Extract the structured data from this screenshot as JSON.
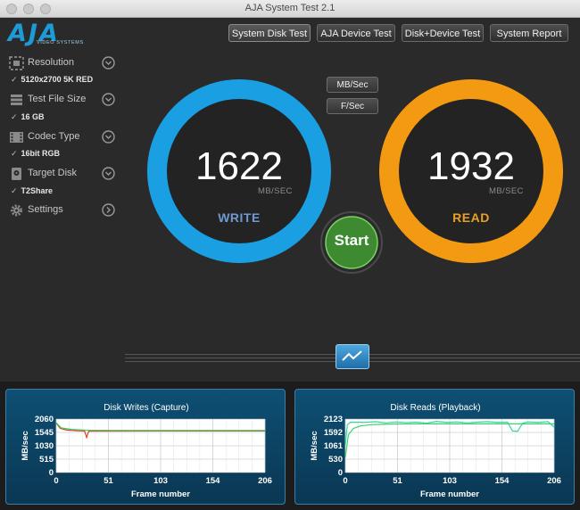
{
  "window": {
    "title": "AJA System Test 2.1"
  },
  "logo": {
    "text": "AJA",
    "subtitle": "VIDEO SYSTEMS"
  },
  "tabs": [
    {
      "label": "System Disk Test",
      "active": true
    },
    {
      "label": "AJA Device Test",
      "active": false
    },
    {
      "label": "Disk+Device Test",
      "active": false
    },
    {
      "label": "System Report",
      "active": false
    }
  ],
  "sidebar": {
    "items": [
      {
        "label": "Resolution",
        "icon": "resolution-icon",
        "value": "5120x2700 5K RED",
        "control": "chevron-down-icon"
      },
      {
        "label": "Test File Size",
        "icon": "stack-icon",
        "value": "16 GB",
        "control": "chevron-down-icon"
      },
      {
        "label": "Codec Type",
        "icon": "film-icon",
        "value": "16bit RGB",
        "control": "chevron-down-icon"
      },
      {
        "label": "Target Disk",
        "icon": "disk-icon",
        "value": "T2Share",
        "control": "chevron-down-icon"
      },
      {
        "label": "Settings",
        "icon": "gear-icon",
        "value": "",
        "control": "chevron-right-icon"
      }
    ],
    "check_mark": "✓"
  },
  "units": {
    "mbsec_label": "MB/Sec",
    "fsec_label": "F/Sec"
  },
  "write_gauge": {
    "value": "1622",
    "unit": "MB/SEC",
    "label": "WRITE",
    "color": "#1aa0e2",
    "label_color": "#6d9ad0"
  },
  "read_gauge": {
    "value": "1932",
    "unit": "MB/SEC",
    "label": "READ",
    "color": "#f39a12",
    "label_color": "#e8a123"
  },
  "start_button": {
    "label": "Start",
    "color": "#3d8a30"
  },
  "graph_toggle": {
    "icon": "graph-icon"
  },
  "charts": [
    {
      "title": "Disk Writes (Capture)",
      "ylabel": "MB/sec",
      "xlabel": "Frame number",
      "yticks": [
        "2060",
        "1545",
        "1030",
        "515",
        "0"
      ],
      "xticks": [
        "0",
        "51",
        "103",
        "154",
        "206"
      ]
    },
    {
      "title": "Disk Reads (Playback)",
      "ylabel": "MB/sec",
      "xlabel": "Frame number",
      "yticks": [
        "2123",
        "1592",
        "1061",
        "530",
        "0"
      ],
      "xticks": [
        "0",
        "51",
        "103",
        "154",
        "206"
      ]
    }
  ],
  "chart_data": [
    {
      "type": "line",
      "title": "Disk Writes (Capture)",
      "xlabel": "Frame number",
      "ylabel": "MB/sec",
      "xlim": [
        0,
        206
      ],
      "ylim": [
        0,
        2060
      ],
      "grid": true,
      "series": [
        {
          "color": "#e53c2a",
          "x": [
            0,
            4,
            10,
            20,
            28,
            30,
            32,
            40,
            60,
            100,
            150,
            206
          ],
          "y": [
            1900,
            1700,
            1640,
            1610,
            1600,
            1350,
            1590,
            1600,
            1595,
            1600,
            1600,
            1600
          ]
        },
        {
          "color": "#39d46a",
          "x": [
            0,
            5,
            15,
            30,
            60,
            100,
            150,
            206
          ],
          "y": [
            1920,
            1720,
            1660,
            1630,
            1622,
            1622,
            1622,
            1622
          ]
        }
      ]
    },
    {
      "type": "line",
      "title": "Disk Reads (Playback)",
      "xlabel": "Frame number",
      "ylabel": "MB/sec",
      "xlim": [
        0,
        206
      ],
      "ylim": [
        0,
        2123
      ],
      "grid": true,
      "series": [
        {
          "color": "#39d6a0",
          "x": [
            0,
            2,
            5,
            10,
            20,
            30,
            40,
            50,
            60,
            70,
            80,
            90,
            100,
            110,
            120,
            130,
            140,
            150,
            160,
            165,
            170,
            175,
            180,
            190,
            200,
            206
          ],
          "y": [
            1100,
            1900,
            1990,
            2000,
            1990,
            2020,
            1970,
            2010,
            1980,
            2000,
            1960,
            2030,
            1990,
            2010,
            1970,
            2000,
            2020,
            1990,
            2000,
            1650,
            1640,
            1960,
            2010,
            1990,
            2020,
            1800
          ]
        },
        {
          "color": "#39d46a",
          "x": [
            0,
            3,
            8,
            15,
            25,
            40,
            60,
            100,
            150,
            206
          ],
          "y": [
            600,
            1500,
            1750,
            1850,
            1900,
            1920,
            1930,
            1932,
            1932,
            1932
          ]
        }
      ]
    }
  ]
}
